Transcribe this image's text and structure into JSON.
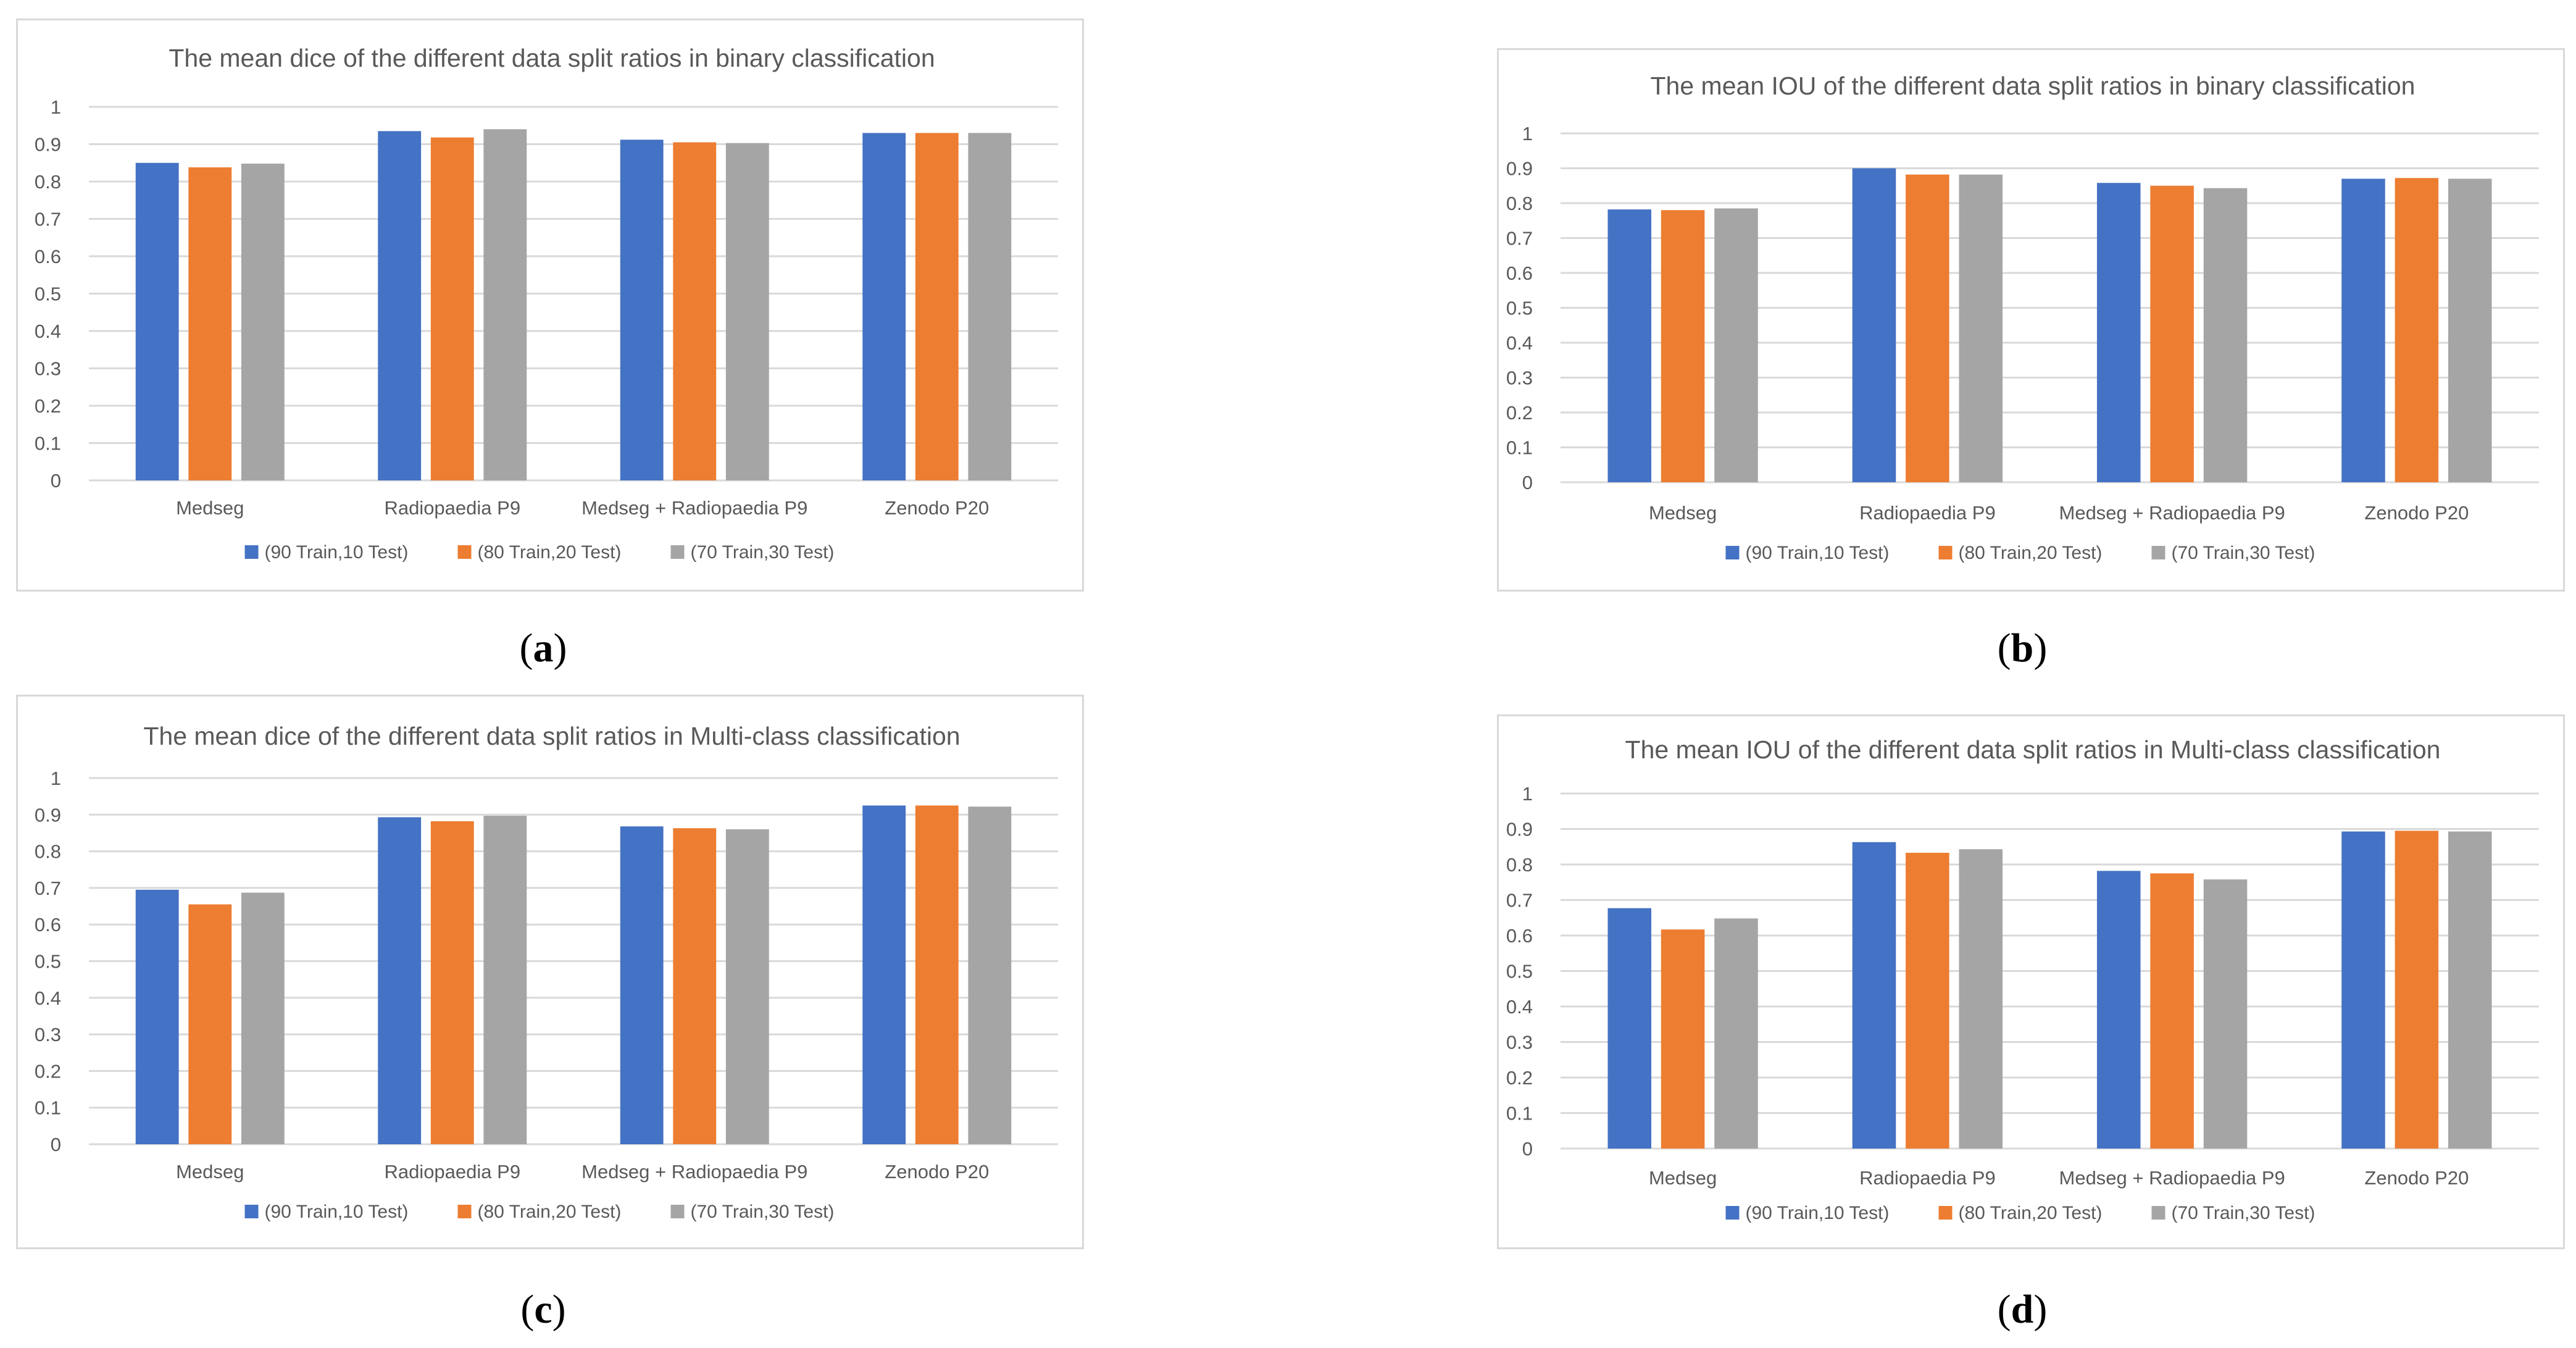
{
  "figure": {
    "panel_labels": [
      "a",
      "b",
      "c",
      "d"
    ]
  },
  "colors": {
    "series": [
      "#4472C4",
      "#ED7D31",
      "#A5A5A5"
    ],
    "grid": "#d9d9d9",
    "text": "#595959"
  },
  "chart_data": [
    {
      "type": "bar",
      "title": "The mean dice of the different data split ratios in binary classification",
      "categories": [
        "Medseg",
        "Radiopaedia P9",
        "Medseg + Radiopaedia P9",
        "Zenodo P20"
      ],
      "yticks": [
        "0",
        "0.1",
        "0.2",
        "0.3",
        "0.4",
        "0.5",
        "0.6",
        "0.7",
        "0.8",
        "0.9",
        "1"
      ],
      "ylim": [
        0,
        1
      ],
      "legend_position": "bottom",
      "series": [
        {
          "name": "(90 Train,10 Test)",
          "values": [
            0.85,
            0.935,
            0.912,
            0.93
          ]
        },
        {
          "name": "(80 Train,20 Test)",
          "values": [
            0.838,
            0.918,
            0.905,
            0.93
          ]
        },
        {
          "name": "(70 Train,30 Test)",
          "values": [
            0.848,
            0.94,
            0.903,
            0.93
          ]
        }
      ]
    },
    {
      "type": "bar",
      "title": "The mean IOU of the different data split ratios in binary classification",
      "categories": [
        "Medseg",
        "Radiopaedia P9",
        "Medseg + Radiopaedia P9",
        "Zenodo P20"
      ],
      "yticks": [
        "0",
        "0.1",
        "0.2",
        "0.3",
        "0.4",
        "0.5",
        "0.6",
        "0.7",
        "0.8",
        "0.9",
        "1"
      ],
      "ylim": [
        0,
        1
      ],
      "legend_position": "bottom",
      "series": [
        {
          "name": "(90 Train,10 Test)",
          "values": [
            0.782,
            0.9,
            0.858,
            0.87
          ]
        },
        {
          "name": "(80 Train,20 Test)",
          "values": [
            0.78,
            0.882,
            0.85,
            0.872
          ]
        },
        {
          "name": "(70 Train,30 Test)",
          "values": [
            0.785,
            0.882,
            0.843,
            0.87
          ]
        }
      ]
    },
    {
      "type": "bar",
      "title": "The mean dice of the different data split ratios in Multi-class classification",
      "categories": [
        "Medseg",
        "Radiopaedia P9",
        "Medseg + Radiopaedia P9",
        "Zenodo P20"
      ],
      "yticks": [
        "0",
        "0.1",
        "0.2",
        "0.3",
        "0.4",
        "0.5",
        "0.6",
        "0.7",
        "0.8",
        "0.9",
        "1"
      ],
      "ylim": [
        0,
        1
      ],
      "legend_position": "bottom",
      "series": [
        {
          "name": "(90 Train,10 Test)",
          "values": [
            0.695,
            0.893,
            0.868,
            0.925
          ]
        },
        {
          "name": "(80 Train,20 Test)",
          "values": [
            0.655,
            0.882,
            0.863,
            0.925
          ]
        },
        {
          "name": "(70 Train,30 Test)",
          "values": [
            0.687,
            0.897,
            0.86,
            0.922
          ]
        }
      ]
    },
    {
      "type": "bar",
      "title": "The mean IOU of the different data split ratios in Multi-class classification",
      "categories": [
        "Medseg",
        "Radiopaedia P9",
        "Medseg + Radiopaedia P9",
        "Zenodo P20"
      ],
      "yticks": [
        "0",
        "0.1",
        "0.2",
        "0.3",
        "0.4",
        "0.5",
        "0.6",
        "0.7",
        "0.8",
        "0.9",
        "1"
      ],
      "ylim": [
        0,
        1
      ],
      "legend_position": "bottom",
      "series": [
        {
          "name": "(90 Train,10 Test)",
          "values": [
            0.677,
            0.863,
            0.782,
            0.893
          ]
        },
        {
          "name": "(80 Train,20 Test)",
          "values": [
            0.617,
            0.833,
            0.775,
            0.895
          ]
        },
        {
          "name": "(70 Train,30 Test)",
          "values": [
            0.648,
            0.843,
            0.758,
            0.893
          ]
        }
      ]
    }
  ]
}
